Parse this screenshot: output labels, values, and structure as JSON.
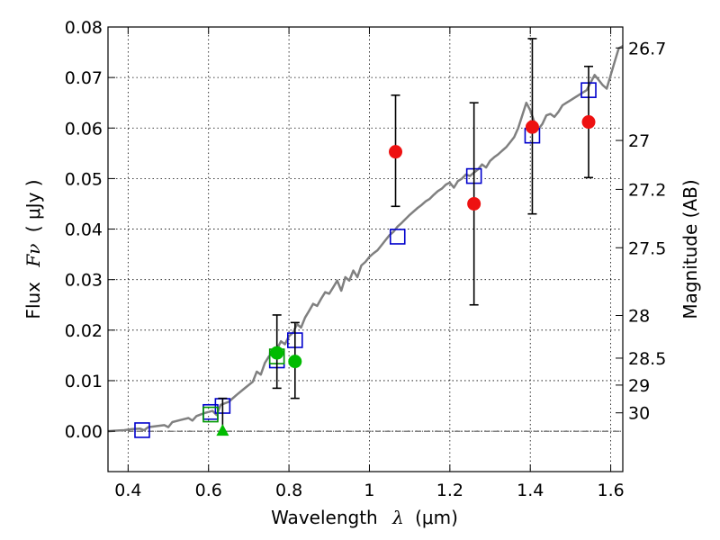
{
  "chart_data": {
    "type": "scatter",
    "xlabel": "Wavelength",
    "xlabel_symbol": "λ",
    "xlabel_unit": "(μm)",
    "ylabel": "Flux",
    "ylabel_symbol": "Fν",
    "ylabel_unit": "( μJy )",
    "y2label": "Magnitude (AB)",
    "xlim": [
      0.35,
      1.63
    ],
    "ylim": [
      -0.008,
      0.08
    ],
    "grid": true,
    "x_ticks": [
      0.4,
      0.6,
      0.8,
      1.0,
      1.2,
      1.4,
      1.6
    ],
    "x_tick_labels": [
      "0.4",
      "0.6",
      "0.8",
      "1",
      "1.2",
      "1.4",
      "1.6"
    ],
    "y_ticks": [
      0.0,
      0.01,
      0.02,
      0.03,
      0.04,
      0.05,
      0.06,
      0.07,
      0.08
    ],
    "y_tick_labels": [
      "0.00",
      "0.01",
      "0.02",
      "0.03",
      "0.04",
      "0.05",
      "0.06",
      "0.07",
      "0.08"
    ],
    "mag_ticks": [
      26.7,
      27,
      27.2,
      27.5,
      28,
      28.5,
      29,
      30
    ],
    "mag_tick_labels": [
      "26.7",
      "27",
      "27.2",
      "27.5",
      "28",
      "28.5",
      "29",
      "30"
    ],
    "zero_line_value": 0.0,
    "colors": {
      "template": "#808080",
      "model_boxes": "#0000cc",
      "green_boxes": "#009900",
      "red_points": "#ee1111",
      "green_points": "#00bb00",
      "errorbars": "#000000"
    },
    "series": [
      {
        "type": "line",
        "color": "#808080",
        "points": [
          [
            0.35,
            0.0
          ],
          [
            0.37,
            0.0001
          ],
          [
            0.39,
            0.0002
          ],
          [
            0.41,
            0.0004
          ],
          [
            0.43,
            0.0005
          ],
          [
            0.44,
            0.0002
          ],
          [
            0.45,
            0.0008
          ],
          [
            0.47,
            0.001
          ],
          [
            0.49,
            0.0012
          ],
          [
            0.5,
            0.0008
          ],
          [
            0.51,
            0.0018
          ],
          [
            0.53,
            0.0022
          ],
          [
            0.55,
            0.0026
          ],
          [
            0.56,
            0.0021
          ],
          [
            0.57,
            0.003
          ],
          [
            0.59,
            0.0036
          ],
          [
            0.61,
            0.004
          ],
          [
            0.62,
            0.0032
          ],
          [
            0.63,
            0.0052
          ],
          [
            0.65,
            0.0058
          ],
          [
            0.67,
            0.0072
          ],
          [
            0.69,
            0.0085
          ],
          [
            0.71,
            0.0098
          ],
          [
            0.72,
            0.0118
          ],
          [
            0.73,
            0.0112
          ],
          [
            0.74,
            0.0135
          ],
          [
            0.75,
            0.0148
          ],
          [
            0.76,
            0.0155
          ],
          [
            0.77,
            0.0162
          ],
          [
            0.78,
            0.0178
          ],
          [
            0.79,
            0.0172
          ],
          [
            0.8,
            0.0188
          ],
          [
            0.81,
            0.0195
          ],
          [
            0.82,
            0.0212
          ],
          [
            0.83,
            0.0205
          ],
          [
            0.84,
            0.0225
          ],
          [
            0.85,
            0.0238
          ],
          [
            0.86,
            0.0252
          ],
          [
            0.87,
            0.0248
          ],
          [
            0.88,
            0.0262
          ],
          [
            0.89,
            0.0275
          ],
          [
            0.9,
            0.0272
          ],
          [
            0.91,
            0.0285
          ],
          [
            0.92,
            0.0298
          ],
          [
            0.93,
            0.0278
          ],
          [
            0.94,
            0.0305
          ],
          [
            0.95,
            0.0298
          ],
          [
            0.96,
            0.0318
          ],
          [
            0.97,
            0.0305
          ],
          [
            0.98,
            0.0328
          ],
          [
            0.99,
            0.0335
          ],
          [
            1.0,
            0.0345
          ],
          [
            1.01,
            0.0352
          ],
          [
            1.02,
            0.0358
          ],
          [
            1.03,
            0.0368
          ],
          [
            1.04,
            0.0378
          ],
          [
            1.05,
            0.0388
          ],
          [
            1.06,
            0.0395
          ],
          [
            1.07,
            0.0405
          ],
          [
            1.08,
            0.0412
          ],
          [
            1.09,
            0.042
          ],
          [
            1.1,
            0.0428
          ],
          [
            1.11,
            0.0435
          ],
          [
            1.12,
            0.0442
          ],
          [
            1.13,
            0.0448
          ],
          [
            1.14,
            0.0455
          ],
          [
            1.15,
            0.046
          ],
          [
            1.16,
            0.0468
          ],
          [
            1.17,
            0.0475
          ],
          [
            1.18,
            0.048
          ],
          [
            1.19,
            0.0488
          ],
          [
            1.2,
            0.0492
          ],
          [
            1.21,
            0.0482
          ],
          [
            1.22,
            0.0495
          ],
          [
            1.23,
            0.05
          ],
          [
            1.24,
            0.0508
          ],
          [
            1.25,
            0.0505
          ],
          [
            1.26,
            0.0512
          ],
          [
            1.27,
            0.0518
          ],
          [
            1.28,
            0.0528
          ],
          [
            1.29,
            0.0522
          ],
          [
            1.3,
            0.0535
          ],
          [
            1.31,
            0.0542
          ],
          [
            1.32,
            0.0548
          ],
          [
            1.33,
            0.0555
          ],
          [
            1.34,
            0.0562
          ],
          [
            1.35,
            0.0572
          ],
          [
            1.36,
            0.0582
          ],
          [
            1.37,
            0.06
          ],
          [
            1.38,
            0.0625
          ],
          [
            1.39,
            0.065
          ],
          [
            1.4,
            0.0635
          ],
          [
            1.41,
            0.0612
          ],
          [
            1.42,
            0.0598
          ],
          [
            1.43,
            0.0608
          ],
          [
            1.44,
            0.0625
          ],
          [
            1.45,
            0.0628
          ],
          [
            1.46,
            0.0622
          ],
          [
            1.47,
            0.0632
          ],
          [
            1.48,
            0.0645
          ],
          [
            1.49,
            0.065
          ],
          [
            1.5,
            0.0655
          ],
          [
            1.51,
            0.066
          ],
          [
            1.52,
            0.0665
          ],
          [
            1.53,
            0.067
          ],
          [
            1.54,
            0.0675
          ],
          [
            1.55,
            0.069
          ],
          [
            1.56,
            0.0705
          ],
          [
            1.57,
            0.0695
          ],
          [
            1.58,
            0.0685
          ],
          [
            1.59,
            0.0678
          ],
          [
            1.6,
            0.0705
          ],
          [
            1.61,
            0.0732
          ],
          [
            1.62,
            0.0758
          ],
          [
            1.63,
            0.0762
          ]
        ]
      },
      {
        "type": "model-boxes",
        "color": "#0000cc",
        "points": [
          [
            0.435,
            0.0002
          ],
          [
            0.605,
            0.0038
          ],
          [
            0.635,
            0.005
          ],
          [
            0.77,
            0.014
          ],
          [
            0.815,
            0.018
          ],
          [
            1.07,
            0.0385
          ],
          [
            1.26,
            0.0505
          ],
          [
            1.405,
            0.0585
          ],
          [
            1.545,
            0.0675
          ]
        ]
      },
      {
        "type": "model-boxes",
        "color": "#009900",
        "points": [
          [
            0.605,
            0.0033
          ],
          [
            0.77,
            0.0148
          ]
        ]
      },
      {
        "type": "points",
        "color": "#ee1111",
        "points": [
          {
            "x": 1.065,
            "y": 0.0553,
            "lo": 0.0445,
            "hi": 0.0665
          },
          {
            "x": 1.26,
            "y": 0.045,
            "lo": 0.025,
            "hi": 0.065
          },
          {
            "x": 1.405,
            "y": 0.0602,
            "lo": 0.043,
            "hi": 0.0777
          },
          {
            "x": 1.545,
            "y": 0.0612,
            "lo": 0.0502,
            "hi": 0.0722
          }
        ]
      },
      {
        "type": "points",
        "color": "#00bb00",
        "points": [
          {
            "x": 0.77,
            "y": 0.0155,
            "lo": 0.0085,
            "hi": 0.023
          },
          {
            "x": 0.815,
            "y": 0.0138,
            "lo": 0.0065,
            "hi": 0.0215
          }
        ]
      },
      {
        "type": "errorbar-only",
        "color": "#000000",
        "points": [
          {
            "x": 0.635,
            "lo": 0.0,
            "hi": 0.0065
          }
        ]
      },
      {
        "type": "triangle",
        "color": "#00bb00",
        "points": [
          [
            0.635,
            0.0
          ]
        ]
      }
    ]
  }
}
